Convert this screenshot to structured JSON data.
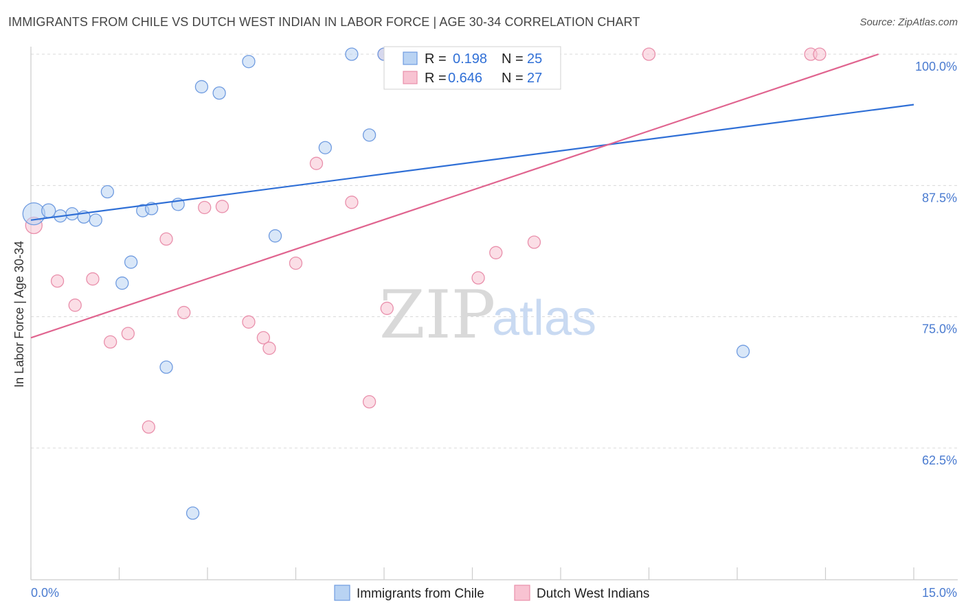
{
  "header": {
    "title": "IMMIGRANTS FROM CHILE VS DUTCH WEST INDIAN IN LABOR FORCE | AGE 30-34 CORRELATION CHART",
    "source": "Source: ZipAtlas.com"
  },
  "watermark": {
    "zip": "ZIP",
    "atlas": "atlas"
  },
  "legend_box": {
    "rows": [
      {
        "r_label": "R =",
        "r_value": "0.198",
        "n_label": "N =",
        "n_value": "25"
      },
      {
        "r_label": "R =",
        "r_value": "0.646",
        "n_label": "N =",
        "n_value": "27"
      }
    ]
  },
  "bottom_legend": [
    "Immigrants from Chile",
    "Dutch West Indians"
  ],
  "colors": {
    "blue_fill": "#b9d3f3",
    "blue_stroke": "#6f9be0",
    "blue_line": "#2f6fd6",
    "pink_fill": "#f8c3d2",
    "pink_stroke": "#e98fab",
    "pink_line": "#e0648f",
    "grid": "#d8d8d8",
    "axis_text": "#4a7bd0"
  },
  "chart_data": {
    "type": "scatter",
    "title": "IMMIGRANTS FROM CHILE VS DUTCH WEST INDIAN IN LABOR FORCE | AGE 30-34 CORRELATION CHART",
    "xlabel": "",
    "ylabel": "In Labor Force | Age 30-34",
    "xlim": [
      0,
      15
    ],
    "ylim": [
      52.5,
      101.5
    ],
    "x_tick_labels": [
      "0.0%",
      "15.0%"
    ],
    "y_ticks": [
      62.5,
      75.0,
      87.5,
      100.0
    ],
    "y_tick_labels": [
      "62.5%",
      "75.0%",
      "87.5%",
      "100.0%"
    ],
    "grid": true,
    "legend_position": "top-center",
    "series": [
      {
        "name": "Immigrants from Chile",
        "R": 0.198,
        "N": 25,
        "trend": [
          [
            0,
            84.2
          ],
          [
            15,
            95.2
          ]
        ],
        "points": [
          [
            0.05,
            84.8,
            16
          ],
          [
            0.3,
            85.1,
            10
          ],
          [
            0.5,
            84.6,
            9
          ],
          [
            0.7,
            84.8,
            9
          ],
          [
            0.9,
            84.5,
            9
          ],
          [
            1.1,
            84.2,
            9
          ],
          [
            1.3,
            86.9,
            9
          ],
          [
            1.55,
            78.2,
            9
          ],
          [
            1.7,
            80.2,
            9
          ],
          [
            1.9,
            85.1,
            9
          ],
          [
            2.05,
            85.3,
            9
          ],
          [
            2.3,
            70.2,
            9
          ],
          [
            2.5,
            85.7,
            9
          ],
          [
            2.75,
            56.3,
            9
          ],
          [
            2.9,
            96.9,
            9
          ],
          [
            3.2,
            96.3,
            9
          ],
          [
            3.7,
            99.3,
            9
          ],
          [
            4.15,
            82.7,
            9
          ],
          [
            5.0,
            91.1,
            9
          ],
          [
            5.45,
            100.0,
            9
          ],
          [
            5.75,
            92.3,
            9
          ],
          [
            6.0,
            100.0,
            9
          ],
          [
            6.75,
            97.3,
            9
          ],
          [
            7.9,
            100.0,
            9
          ],
          [
            12.1,
            71.7,
            9
          ]
        ]
      },
      {
        "name": "Dutch West Indians",
        "R": 0.646,
        "N": 27,
        "trend": [
          [
            0,
            73.0
          ],
          [
            14.4,
            100.0
          ]
        ],
        "points": [
          [
            0.05,
            83.7,
            12
          ],
          [
            0.45,
            78.4,
            9
          ],
          [
            0.75,
            76.1,
            9
          ],
          [
            1.05,
            78.6,
            9
          ],
          [
            1.35,
            72.6,
            9
          ],
          [
            1.65,
            73.4,
            9
          ],
          [
            2.0,
            64.5,
            9
          ],
          [
            2.3,
            82.4,
            9
          ],
          [
            2.6,
            75.4,
            9
          ],
          [
            2.95,
            85.4,
            9
          ],
          [
            3.25,
            85.5,
            9
          ],
          [
            3.7,
            74.5,
            9
          ],
          [
            3.95,
            73.0,
            9
          ],
          [
            4.05,
            72.0,
            9
          ],
          [
            4.5,
            80.1,
            9
          ],
          [
            4.85,
            89.6,
            9
          ],
          [
            5.45,
            85.9,
            9
          ],
          [
            5.75,
            66.9,
            9
          ],
          [
            6.0,
            100.0,
            9
          ],
          [
            6.05,
            75.8,
            9
          ],
          [
            7.6,
            78.7,
            9
          ],
          [
            7.9,
            81.1,
            9
          ],
          [
            8.2,
            100.0,
            9
          ],
          [
            8.55,
            82.1,
            9
          ],
          [
            10.5,
            100.0,
            9
          ],
          [
            13.25,
            100.0,
            9
          ],
          [
            13.4,
            100.0,
            9
          ]
        ]
      }
    ]
  }
}
